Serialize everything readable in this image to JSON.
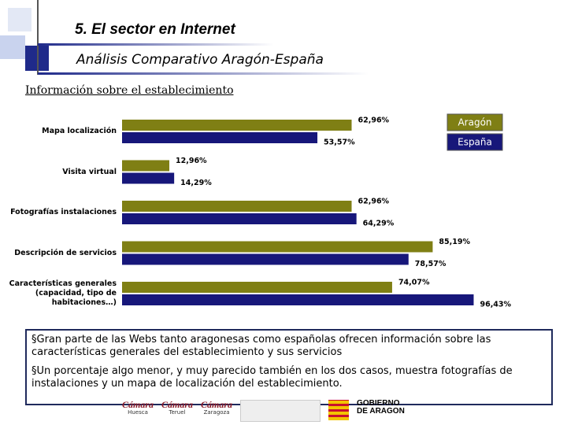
{
  "header": {
    "title": "5. El sector en Internet",
    "subtitle": "Análisis Comparativo Aragón-España"
  },
  "section_title": "Información sobre el establecimiento",
  "chart_data": {
    "type": "hbar",
    "categories": [
      "Mapa localización",
      "Visita virtual",
      "Fotografías instalaciones",
      "Descripción de servicios",
      "Características generales (capacidad, tipo de habitaciones…)"
    ],
    "series": [
      {
        "name": "Aragón",
        "color": "#7f7f14",
        "values": [
          62.96,
          12.96,
          62.96,
          85.19,
          74.07
        ],
        "value_labels": [
          "62,96%",
          "12,96%",
          "62,96%",
          "85,19%",
          "74,07%"
        ]
      },
      {
        "name": "España",
        "color": "#17177a",
        "values": [
          53.57,
          14.29,
          64.29,
          78.57,
          96.43
        ],
        "value_labels": [
          "53,57%",
          "14,29%",
          "64,29%",
          "78,57%",
          "96,43%"
        ]
      }
    ],
    "xlim": [
      0,
      100
    ],
    "legend": "upper right"
  },
  "notes": [
    "Gran parte de las Webs tanto aragonesas como españolas ofrecen información sobre las características generales del establecimiento y sus servicios",
    "Un porcentaje algo menor, y muy parecido también en los dos casos, muestra fotografías de instalaciones y un mapa de localización del establecimiento."
  ],
  "footer": {
    "logos": [
      "Cámara",
      "Cámara",
      "Cámara",
      "GOBIERNO DE ARAGON"
    ],
    "logo_captions": [
      "Huesca",
      "Teruel",
      "Zaragoza"
    ]
  }
}
